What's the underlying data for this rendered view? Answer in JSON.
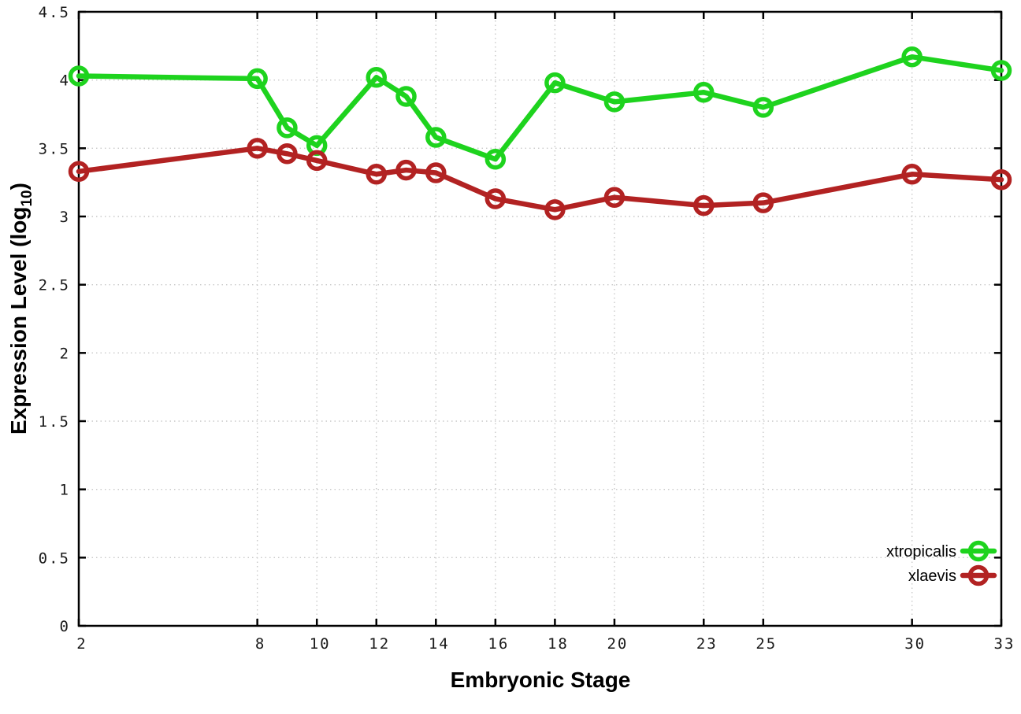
{
  "figure": {
    "background": "#ffffff",
    "border_color": "#000000",
    "grid_color": "#c9c9c9",
    "tick_label_color": "#1a1a1a"
  },
  "chart_data": {
    "type": "line",
    "title": "",
    "xlabel": "Embryonic Stage",
    "ylabel": "Expression Level (log10)",
    "ylabel_parts": {
      "pre": "Expression Level (log",
      "sub": "10",
      "post": ")"
    },
    "xlim": [
      2,
      33
    ],
    "ylim": [
      0,
      4.5
    ],
    "grid": true,
    "legend_position": "inside-bottom-right",
    "xticks": [
      2,
      8,
      10,
      12,
      14,
      16,
      18,
      20,
      23,
      25,
      30,
      33
    ],
    "xtick_labels": [
      "2",
      "8",
      "10",
      "12",
      "14",
      "16",
      "18",
      "20",
      "23",
      "25",
      "30",
      "33"
    ],
    "yticks": [
      0,
      0.5,
      1,
      1.5,
      2,
      2.5,
      3,
      3.5,
      4,
      4.5
    ],
    "ytick_labels": [
      "0",
      "0.5",
      "1",
      "1.5",
      "2",
      "2.5",
      "3",
      "3.5",
      "4",
      "4.5"
    ],
    "x": [
      2,
      8,
      9,
      10,
      12,
      13,
      14,
      16,
      18,
      20,
      23,
      25,
      30,
      33
    ],
    "series": [
      {
        "name": "xtropicalis",
        "color": "#1ed31e",
        "marker": "open-circle",
        "values": [
          4.03,
          4.01,
          3.65,
          3.52,
          4.02,
          3.88,
          3.58,
          3.42,
          3.98,
          3.84,
          3.91,
          3.8,
          4.17,
          4.07
        ]
      },
      {
        "name": "xlaevis",
        "color": "#b22222",
        "marker": "open-circle",
        "values": [
          3.33,
          3.5,
          3.46,
          3.41,
          3.31,
          3.34,
          3.32,
          3.13,
          3.05,
          3.14,
          3.08,
          3.1,
          3.31,
          3.27
        ]
      }
    ]
  }
}
